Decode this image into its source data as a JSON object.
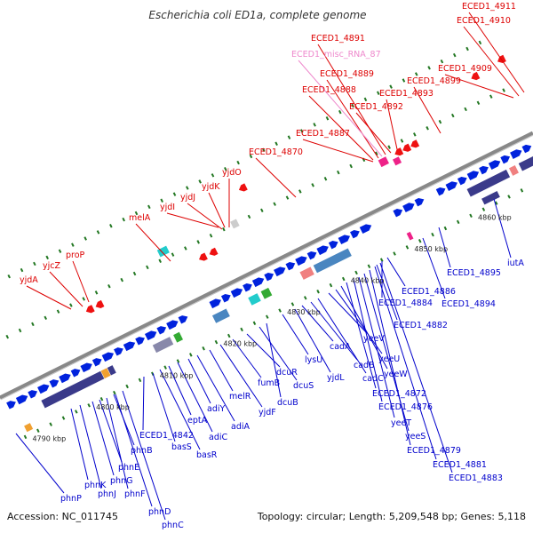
{
  "map": {
    "title": "Escherichia coli ED1a, complete genome",
    "accession": "Accession: NC_011745",
    "summary": "Topology: circular; Length: 5,209,548 bp; Genes: 5,118"
  },
  "colors": {
    "forward_gene": "#0022dd",
    "reverse_gene": "#ee1111",
    "backbone": "#888888",
    "dark_feature": "#3a3a8a",
    "steel_feature": "#4a86c0",
    "orange_feature": "#f0a030",
    "cyan_feature": "#22cccc",
    "green_feature": "#33aa33",
    "pink_feature": "#f08080",
    "magenta_feature": "#ee2288",
    "label_forward": "#0000cc",
    "label_reverse": "#dd0000",
    "label_misc_rna": "#ee88cc",
    "tick": "#227722"
  },
  "scale_ticks": [
    {
      "label": "4790 kbp",
      "kb": 4790
    },
    {
      "label": "4800 kbp",
      "kb": 4800
    },
    {
      "label": "4810 kbp",
      "kb": 4810
    },
    {
      "label": "4820 kbp",
      "kb": 4820
    },
    {
      "label": "4830 kbp",
      "kb": 4830
    },
    {
      "label": "4840 kbp",
      "kb": 4840
    },
    {
      "label": "4850 kbp",
      "kb": 4850
    },
    {
      "label": "4860 kbp",
      "kb": 4860
    }
  ],
  "top_labels": [
    {
      "text": "yjdA",
      "strand": "reverse"
    },
    {
      "text": "yjcZ",
      "strand": "reverse"
    },
    {
      "text": "proP",
      "strand": "reverse"
    },
    {
      "text": "melA",
      "strand": "reverse"
    },
    {
      "text": "yjdI",
      "strand": "reverse"
    },
    {
      "text": "yjdJ",
      "strand": "reverse"
    },
    {
      "text": "yjdK",
      "strand": "reverse"
    },
    {
      "text": "yjdO",
      "strand": "reverse"
    },
    {
      "text": "ECED1_4870",
      "strand": "reverse"
    },
    {
      "text": "ECED1_4887",
      "strand": "reverse"
    },
    {
      "text": "ECED1_4888",
      "strand": "reverse"
    },
    {
      "text": "ECED1_4889",
      "strand": "reverse"
    },
    {
      "text": "ECED1_misc_RNA_87",
      "strand": "misc"
    },
    {
      "text": "ECED1_4891",
      "strand": "reverse"
    },
    {
      "text": "ECED1_4892",
      "strand": "reverse"
    },
    {
      "text": "ECED1_4893",
      "strand": "reverse"
    },
    {
      "text": "ECED1_4899",
      "strand": "reverse"
    },
    {
      "text": "ECED1_4909",
      "strand": "reverse"
    },
    {
      "text": "ECED1_4910",
      "strand": "reverse"
    },
    {
      "text": "ECED1_4911",
      "strand": "reverse"
    }
  ],
  "bottom_labels": [
    {
      "text": "phnP"
    },
    {
      "text": "phnK"
    },
    {
      "text": "phnJ"
    },
    {
      "text": "phnG"
    },
    {
      "text": "phnE"
    },
    {
      "text": "phnF"
    },
    {
      "text": "phnD"
    },
    {
      "text": "phnC"
    },
    {
      "text": "phnB"
    },
    {
      "text": "ECED1_4842"
    },
    {
      "text": "basS"
    },
    {
      "text": "basR"
    },
    {
      "text": "eptA"
    },
    {
      "text": "adiC"
    },
    {
      "text": "adiY"
    },
    {
      "text": "adiA"
    },
    {
      "text": "melR"
    },
    {
      "text": "yjdF"
    },
    {
      "text": "fumB"
    },
    {
      "text": "dcuR"
    },
    {
      "text": "dcuS"
    },
    {
      "text": "dcuB"
    },
    {
      "text": "lysU"
    },
    {
      "text": "yjdL"
    },
    {
      "text": "cadA"
    },
    {
      "text": "cadB"
    },
    {
      "text": "cadC"
    },
    {
      "text": "yeeV"
    },
    {
      "text": "yeeU"
    },
    {
      "text": "yeeW"
    },
    {
      "text": "ECED1_4872"
    },
    {
      "text": "ECED1_4876"
    },
    {
      "text": "yeeT"
    },
    {
      "text": "yeeS"
    },
    {
      "text": "ECED1_4879"
    },
    {
      "text": "ECED1_4881"
    },
    {
      "text": "ECED1_4883"
    },
    {
      "text": "ECED1_4882"
    },
    {
      "text": "ECED1_4884"
    },
    {
      "text": "ECED1_4886"
    },
    {
      "text": "ECED1_4894"
    },
    {
      "text": "ECED1_4895"
    },
    {
      "text": "iutA"
    }
  ]
}
